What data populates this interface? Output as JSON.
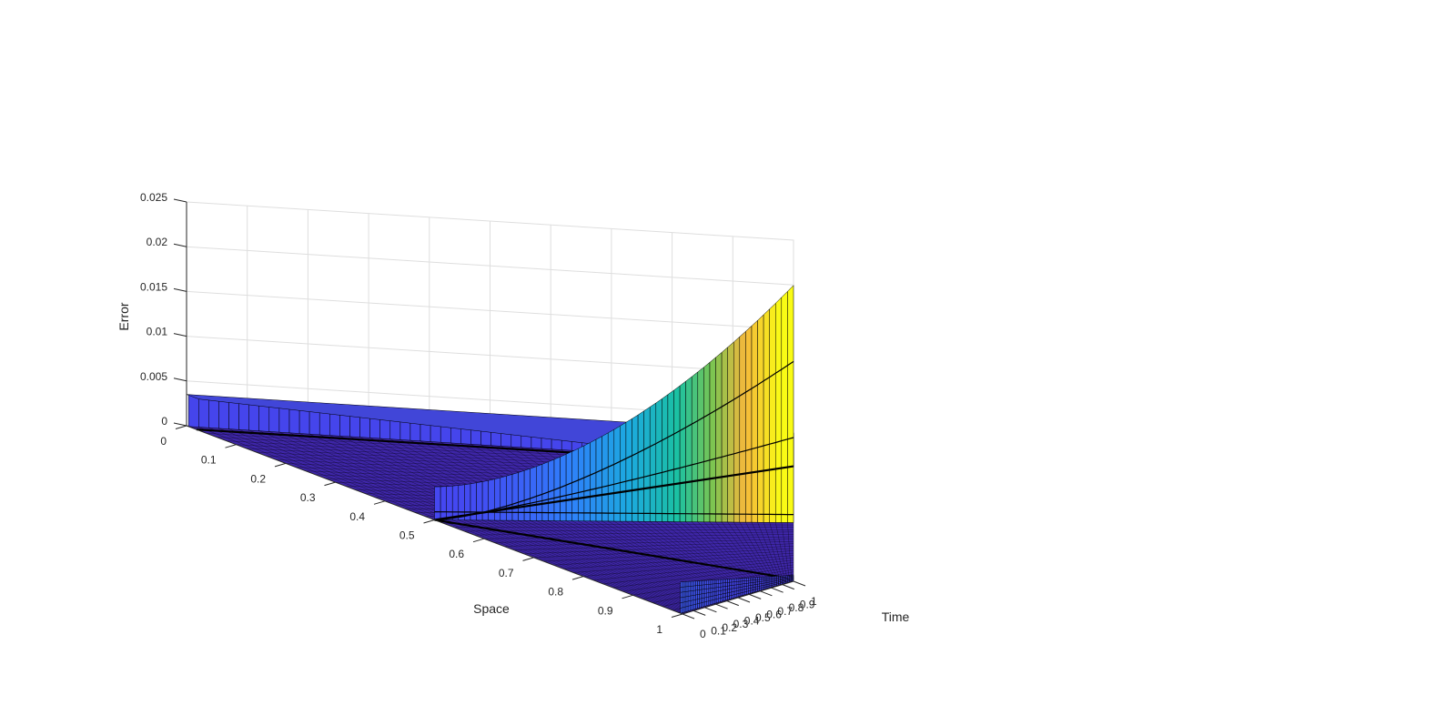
{
  "chart_data": {
    "type": "surface",
    "title": "",
    "xlabel": "Space",
    "ylabel": "Time",
    "zlabel": "Error",
    "xlim": [
      0,
      1
    ],
    "ylim": [
      0,
      1
    ],
    "zlim": [
      0,
      0.025
    ],
    "x_ticks": [
      "0",
      "0.1",
      "0.2",
      "0.3",
      "0.4",
      "0.5",
      "0.6",
      "0.7",
      "0.8",
      "0.9",
      "1"
    ],
    "y_ticks": [
      "0",
      "0.1",
      "0.2",
      "0.3",
      "0.4",
      "0.5",
      "0.6",
      "0.7",
      "0.8",
      "0.9",
      "1"
    ],
    "z_ticks": [
      "0",
      "0.005",
      "0.01",
      "0.015",
      "0.02",
      "0.025"
    ],
    "grid": true,
    "colormap": "parula",
    "edge_color": "#000000",
    "background": "#ffffff",
    "features": [
      {
        "name": "wall at space 0",
        "x": 0,
        "t_range": [
          0,
          1
        ],
        "error": 0.0035
      },
      {
        "name": "wall at space 1",
        "x": 1,
        "t_range": [
          0,
          1
        ],
        "error": 0.0035
      },
      {
        "name": "wedge at space 0.5",
        "x": 0.5,
        "t_range": [
          0,
          1
        ],
        "error_at_t0": 0.0037,
        "error_at_t1": 0.0265
      },
      {
        "name": "base plane",
        "error": 0
      }
    ]
  }
}
